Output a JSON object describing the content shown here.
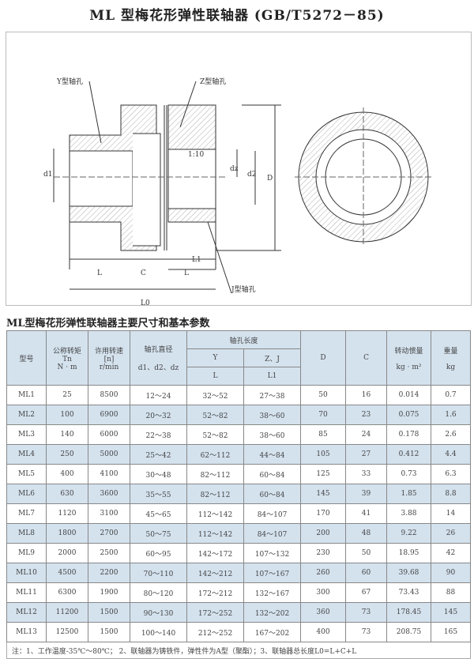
{
  "title": "ML 型梅花形弹性联轴器  (GB/T5272－85)",
  "drawing": {
    "labels": {
      "y_hole": "Y型轴孔",
      "z_hole": "Z型轴孔",
      "j_hole": "J型轴孔",
      "taper": "1:10",
      "d1": "d1",
      "dz": "dz",
      "d2": "d2",
      "D": "D",
      "L_left": "L",
      "C": "C",
      "L_right": "L",
      "L1": "L1",
      "L0": "L0"
    }
  },
  "subtitle": "ML型梅花形弹性联轴器主要尺寸和基本参数",
  "table": {
    "headers": {
      "model": "型号",
      "torque": [
        "公称转矩",
        "Tn",
        "N · m"
      ],
      "speed": [
        "许用转速",
        "[n]",
        "r/min"
      ],
      "bore": [
        "轴孔直径",
        "d1、d2、dz"
      ],
      "length": "轴孔长度",
      "y": "Y",
      "zj": "Z、J",
      "L": "L",
      "L1": "L1",
      "D": "D",
      "C": "C",
      "inertia": [
        "转动惯量",
        "kg · m²"
      ],
      "weight": [
        "重量",
        "kg"
      ]
    },
    "rows": [
      [
        "ML1",
        "25",
        "8500",
        "12～24",
        "32～52",
        "27～38",
        "50",
        "16",
        "0.014",
        "0.7"
      ],
      [
        "ML2",
        "100",
        "6900",
        "20～32",
        "52～82",
        "38～60",
        "70",
        "23",
        "0.075",
        "1.6"
      ],
      [
        "ML3",
        "140",
        "6000",
        "22～38",
        "52～82",
        "38～60",
        "85",
        "24",
        "0.178",
        "2.6"
      ],
      [
        "ML4",
        "250",
        "5000",
        "25～42",
        "62～112",
        "44～84",
        "105",
        "27",
        "0.412",
        "4.4"
      ],
      [
        "ML5",
        "400",
        "4100",
        "30～48",
        "82～112",
        "60～84",
        "125",
        "33",
        "0.73",
        "6.3"
      ],
      [
        "ML6",
        "630",
        "3600",
        "35～55",
        "82～112",
        "60～84",
        "145",
        "39",
        "1.85",
        "8.8"
      ],
      [
        "ML7",
        "1120",
        "3100",
        "45～65",
        "112～142",
        "84～107",
        "170",
        "41",
        "3.88",
        "14"
      ],
      [
        "ML8",
        "1800",
        "2700",
        "50～75",
        "112～142",
        "84～107",
        "200",
        "48",
        "9.22",
        "26"
      ],
      [
        "ML9",
        "2000",
        "2500",
        "60～95",
        "142～172",
        "107～132",
        "230",
        "50",
        "18.95",
        "42"
      ],
      [
        "ML10",
        "4500",
        "2200",
        "70～110",
        "142～212",
        "107～167",
        "260",
        "60",
        "39.68",
        "90"
      ],
      [
        "ML11",
        "6300",
        "1900",
        "80～120",
        "172～212",
        "132～167",
        "300",
        "67",
        "73.43",
        "88"
      ],
      [
        "ML12",
        "11200",
        "1500",
        "90～130",
        "172～252",
        "132～202",
        "360",
        "73",
        "178.45",
        "145"
      ],
      [
        "ML13",
        "12500",
        "1500",
        "100～140",
        "212～252",
        "167～202",
        "400",
        "73",
        "208.75",
        "165"
      ]
    ],
    "note": "注：1、工作温度-35℃～80℃；  2、联轴器为铸铁件，弹性件为A型（聚酯）；3、联轴器总长度L0=L+C+L"
  },
  "colors": {
    "header_bg": "#d4e2ee",
    "stripe_bg": "#d4e2ee"
  }
}
